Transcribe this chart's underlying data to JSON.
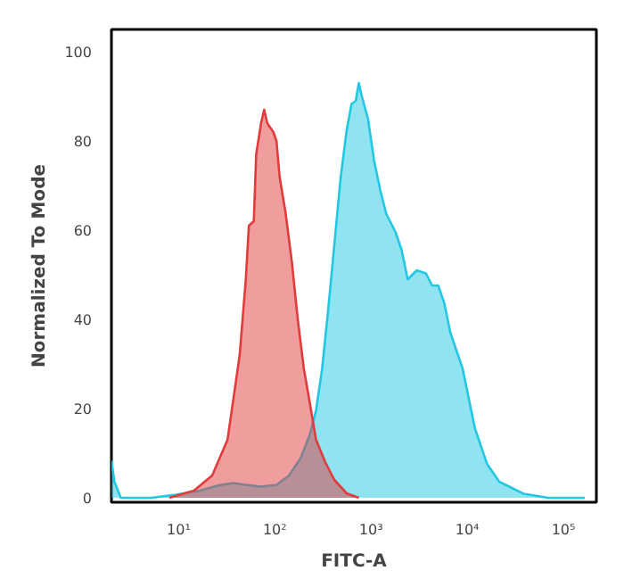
{
  "chart_data": {
    "type": "area",
    "xlabel": "FITC-A",
    "ylabel": "Normalized To Mode",
    "log": "x",
    "xlim": [
      2,
      220000
    ],
    "ylim": [
      -1,
      105
    ],
    "xticks": [
      {
        "value": 10,
        "label": "10¹"
      },
      {
        "value": 100,
        "label": "10²"
      },
      {
        "value": 1000,
        "label": "10³"
      },
      {
        "value": 10000,
        "label": "10⁴"
      },
      {
        "value": 100000,
        "label": "10⁵"
      }
    ],
    "yticks": [
      0,
      20,
      40,
      60,
      80,
      100
    ],
    "series": [
      {
        "color": "#22c8e2",
        "x": [
          2.0,
          2.15,
          2.5,
          5.2,
          9.3,
          16.7,
          25.9,
          37.2,
          49.9,
          71.9,
          104,
          139,
          186,
          232,
          268,
          310,
          359,
          416,
          482,
          557,
          627,
          694,
          746,
          803,
          929,
          1076,
          1245,
          1442,
          1795,
          2077,
          2404,
          2992,
          3724,
          4313,
          4991,
          5779,
          6683,
          8954,
          12000,
          16070,
          21530,
          38640,
          69340,
          166700
        ],
        "values": [
          8.3,
          3.6,
          0,
          0,
          0.7,
          1.6,
          2.8,
          3.3,
          2.9,
          2.5,
          2.9,
          4.9,
          8.9,
          14.3,
          19.6,
          28.9,
          42.3,
          56.9,
          71.6,
          82.3,
          88.3,
          89,
          93,
          90,
          85,
          75.6,
          69,
          63.6,
          59.6,
          55.6,
          49,
          51,
          50.3,
          47.6,
          47.6,
          43.6,
          37,
          29,
          15.6,
          7.6,
          3.6,
          0.9,
          0,
          0
        ]
      },
      {
        "color": "#e03c3c",
        "x": [
          8.0,
          14.4,
          22.3,
          32.2,
          43.1,
          49.9,
          53.7,
          60.4,
          64.0,
          71.9,
          77.4,
          83.4,
          89.6,
          96.4,
          104,
          112,
          129,
          150,
          173,
          200,
          232,
          268,
          334,
          416,
          557,
          746
        ],
        "values": [
          0,
          1.6,
          5,
          13,
          32,
          49,
          61,
          62,
          77,
          84,
          87,
          84,
          83,
          82,
          80,
          72,
          64,
          53,
          40,
          29,
          21,
          13,
          8,
          4,
          1,
          0
        ]
      }
    ]
  }
}
